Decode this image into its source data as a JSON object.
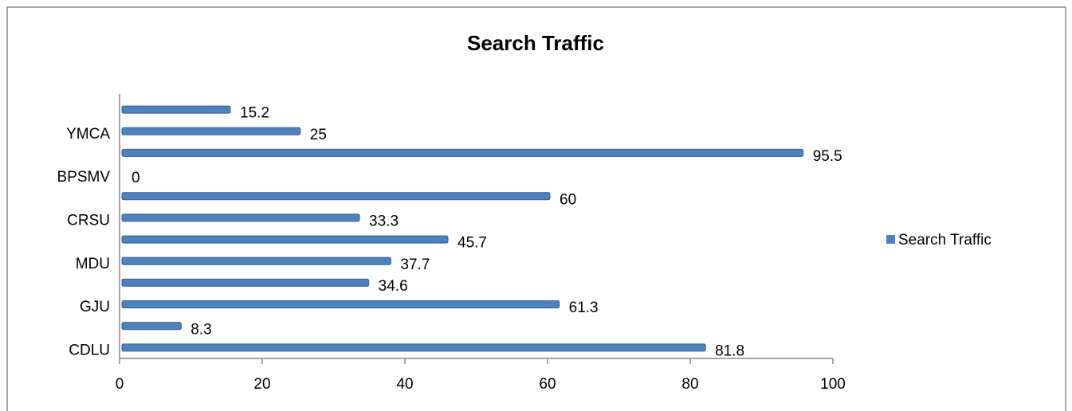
{
  "chart_data": {
    "type": "bar",
    "orientation": "horizontal",
    "title": "Search Traffic",
    "categories": [
      "CDLU",
      null,
      "GJU",
      null,
      "MDU",
      null,
      "CRSU",
      null,
      "BPSMV",
      null,
      "YMCA",
      null
    ],
    "series": [
      {
        "name": "Search Traffic",
        "color": "#4f81bd",
        "values": [
          81.8,
          8.3,
          61.3,
          34.6,
          37.7,
          45.7,
          33.3,
          60,
          0,
          95.5,
          25,
          15.2
        ]
      }
    ],
    "xlim": [
      0,
      100
    ],
    "xticks": [
      0,
      20,
      40,
      60,
      80,
      100
    ],
    "legend": "right"
  }
}
